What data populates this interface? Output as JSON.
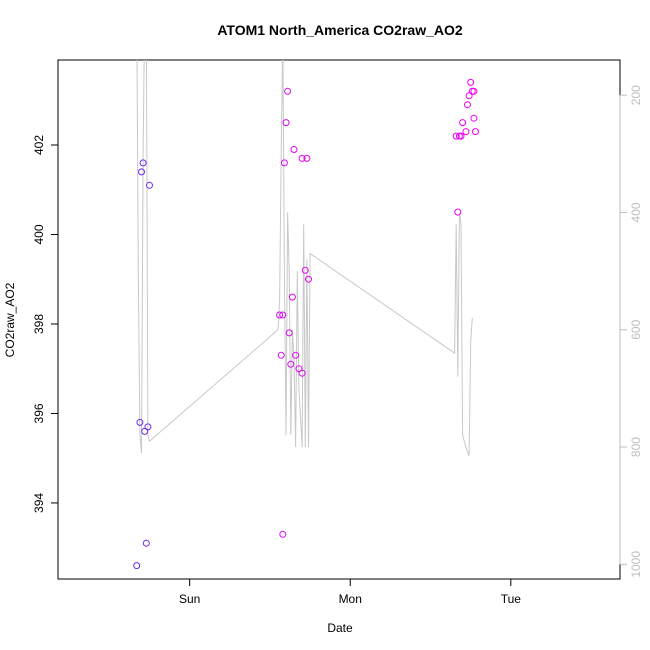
{
  "chart_data": {
    "type": "scatter",
    "title": "ATOM1 North_America CO2raw_AO2",
    "xlabel": "Date",
    "ylabel": "CO2raw_AO2",
    "x_axis": {
      "unit": "days",
      "range": [
        -0.82,
        2.68
      ],
      "ticks": [
        {
          "value": 0,
          "label": "Sun"
        },
        {
          "value": 1,
          "label": "Mon"
        },
        {
          "value": 2,
          "label": "Tue"
        }
      ]
    },
    "y_left": {
      "range": [
        392.3,
        403.9
      ],
      "ticks": [
        394,
        396,
        398,
        400,
        402
      ]
    },
    "y_right": {
      "range": [
        1025,
        140
      ],
      "ticks": [
        200,
        400,
        600,
        800,
        1000
      ],
      "color": "#bebebe"
    },
    "colors": {
      "line": "#c8c8c8",
      "point_start": "#6a2ee6",
      "point_end": "#f200f2"
    },
    "points": [
      {
        "x": -0.33,
        "y": 392.6,
        "t": 0.0
      },
      {
        "x": -0.31,
        "y": 395.8,
        "t": 0.01
      },
      {
        "x": -0.3,
        "y": 401.4,
        "t": 0.02
      },
      {
        "x": -0.29,
        "y": 401.6,
        "t": 0.03
      },
      {
        "x": -0.28,
        "y": 395.6,
        "t": 0.04
      },
      {
        "x": -0.27,
        "y": 393.1,
        "t": 0.05
      },
      {
        "x": -0.26,
        "y": 395.7,
        "t": 0.06
      },
      {
        "x": -0.25,
        "y": 401.1,
        "t": 0.07
      },
      {
        "x": 0.56,
        "y": 398.2,
        "t": 0.75
      },
      {
        "x": 0.57,
        "y": 397.3,
        "t": 0.76
      },
      {
        "x": 0.58,
        "y": 393.3,
        "t": 0.77
      },
      {
        "x": 0.58,
        "y": 398.2,
        "t": 0.78
      },
      {
        "x": 0.59,
        "y": 401.6,
        "t": 0.79
      },
      {
        "x": 0.6,
        "y": 402.5,
        "t": 0.8
      },
      {
        "x": 0.61,
        "y": 403.2,
        "t": 0.81
      },
      {
        "x": 0.62,
        "y": 397.8,
        "t": 0.82
      },
      {
        "x": 0.63,
        "y": 397.1,
        "t": 0.83
      },
      {
        "x": 0.64,
        "y": 398.6,
        "t": 0.84
      },
      {
        "x": 0.65,
        "y": 401.9,
        "t": 0.85
      },
      {
        "x": 0.66,
        "y": 397.3,
        "t": 0.86
      },
      {
        "x": 0.68,
        "y": 397.0,
        "t": 0.87
      },
      {
        "x": 0.7,
        "y": 396.9,
        "t": 0.88
      },
      {
        "x": 0.7,
        "y": 401.7,
        "t": 0.89
      },
      {
        "x": 0.72,
        "y": 399.2,
        "t": 0.9
      },
      {
        "x": 0.73,
        "y": 401.7,
        "t": 0.91
      },
      {
        "x": 0.74,
        "y": 399.0,
        "t": 0.92
      },
      {
        "x": 1.66,
        "y": 402.2,
        "t": 0.93
      },
      {
        "x": 1.67,
        "y": 400.5,
        "t": 0.94
      },
      {
        "x": 1.68,
        "y": 402.2,
        "t": 0.95
      },
      {
        "x": 1.69,
        "y": 402.2,
        "t": 0.95
      },
      {
        "x": 1.7,
        "y": 402.5,
        "t": 0.96
      },
      {
        "x": 1.72,
        "y": 402.3,
        "t": 0.96
      },
      {
        "x": 1.73,
        "y": 402.9,
        "t": 0.97
      },
      {
        "x": 1.74,
        "y": 403.1,
        "t": 0.97
      },
      {
        "x": 1.75,
        "y": 403.4,
        "t": 0.98
      },
      {
        "x": 1.76,
        "y": 403.2,
        "t": 0.98
      },
      {
        "x": 1.77,
        "y": 402.6,
        "t": 0.99
      },
      {
        "x": 1.78,
        "y": 402.3,
        "t": 1.0
      },
      {
        "x": 1.77,
        "y": 403.2,
        "t": 1.0
      }
    ],
    "line_right_axis": [
      [
        -0.33,
        50
      ],
      [
        -0.32,
        500
      ],
      [
        -0.31,
        780
      ],
      [
        -0.3,
        810
      ],
      [
        -0.29,
        300
      ],
      [
        -0.28,
        50
      ],
      [
        -0.27,
        50
      ],
      [
        -0.26,
        780
      ],
      [
        -0.25,
        790
      ],
      [
        0.55,
        600
      ],
      [
        0.56,
        550
      ],
      [
        0.57,
        300
      ],
      [
        0.58,
        100
      ],
      [
        0.59,
        500
      ],
      [
        0.6,
        780
      ],
      [
        0.61,
        400
      ],
      [
        0.62,
        500
      ],
      [
        0.63,
        780
      ],
      [
        0.64,
        600
      ],
      [
        0.65,
        650
      ],
      [
        0.66,
        800
      ],
      [
        0.67,
        500
      ],
      [
        0.68,
        700
      ],
      [
        0.69,
        750
      ],
      [
        0.7,
        800
      ],
      [
        0.71,
        420
      ],
      [
        0.72,
        800
      ],
      [
        0.73,
        480
      ],
      [
        0.74,
        800
      ],
      [
        0.75,
        470
      ],
      [
        1.65,
        640
      ],
      [
        1.66,
        420
      ],
      [
        1.67,
        680
      ],
      [
        1.68,
        400
      ],
      [
        1.69,
        420
      ],
      [
        1.7,
        780
      ],
      [
        1.72,
        800
      ],
      [
        1.74,
        815
      ],
      [
        1.75,
        620
      ],
      [
        1.76,
        580
      ]
    ]
  }
}
